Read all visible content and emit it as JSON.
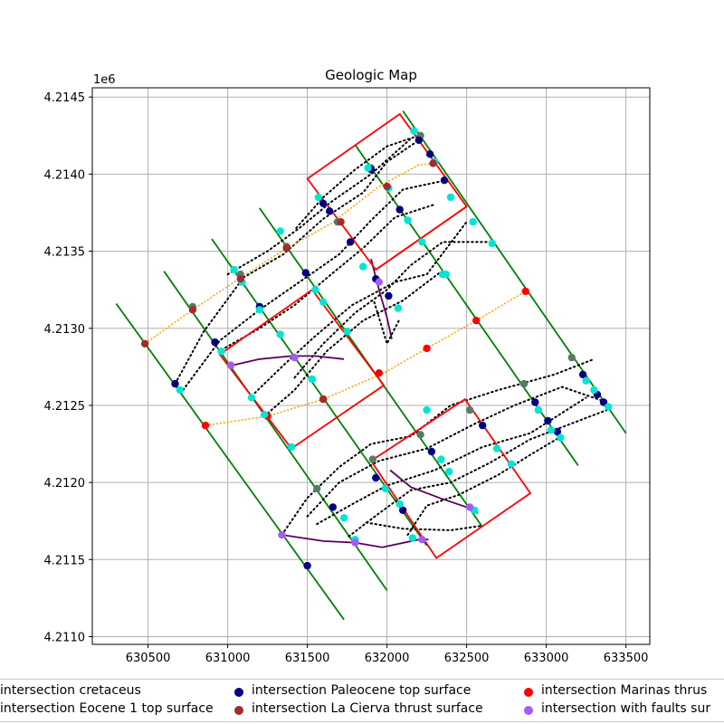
{
  "chart_data": {
    "type": "scatter",
    "title": "Geologic Map",
    "xlabel": "",
    "ylabel": "",
    "y_offset_label": "1e6",
    "xlim": [
      630150,
      633650
    ],
    "ylim": [
      4210950,
      4214560
    ],
    "x_ticks": [
      630500,
      631000,
      631500,
      632000,
      632500,
      633000,
      633500
    ],
    "y_ticks": [
      4211000,
      4211500,
      4212000,
      4212500,
      4213000,
      4213500,
      4214000,
      4214500
    ],
    "y_tick_labels": [
      "4.2110",
      "4.2115",
      "4.2120",
      "4.2125",
      "4.2130",
      "4.2135",
      "4.2140",
      "4.2145"
    ],
    "grid": true,
    "legend_position": "bottom",
    "colors": {
      "profile_lines": "#008000",
      "map_boxes": "#ff0000",
      "contours": "#000000",
      "orange_trace": "#ffa500",
      "faults": "#5b005b",
      "cyan": "#00e5d5",
      "gray": "#5a7a66",
      "navy": "#000080",
      "brown": "#a52a2a",
      "red": "#ff0000",
      "violet": "#a55cf5"
    },
    "legend": [
      {
        "label": "intersection cretaceus",
        "color": "#5a7a66"
      },
      {
        "label": "intersection Paleocene top surface",
        "color": "#000080"
      },
      {
        "label": "intersection Marinas thrus",
        "color": "#ff0000"
      },
      {
        "label": "intersection Eocene 1 top surface",
        "color": "#00e5d5"
      },
      {
        "label": "intersection La Cierva thrust surface",
        "color": "#a52a2a"
      },
      {
        "label": "intersection with faults sur",
        "color": "#a55cf5"
      }
    ],
    "profile_lines": [
      [
        [
          630300,
          4213160
        ],
        [
          631730,
          4211110
        ]
      ],
      [
        [
          630600,
          4213370
        ],
        [
          632000,
          4211300
        ]
      ],
      [
        [
          630900,
          4213580
        ],
        [
          632250,
          4211590
        ]
      ],
      [
        [
          631200,
          4213780
        ],
        [
          632600,
          4211710
        ]
      ],
      [
        [
          631800,
          4214190
        ],
        [
          633200,
          4212110
        ]
      ],
      [
        [
          632100,
          4214410
        ],
        [
          633500,
          4212320
        ]
      ]
    ],
    "map_boxes": [
      [
        [
          631500,
          4213970
        ],
        [
          632080,
          4214390
        ],
        [
          632500,
          4213790
        ],
        [
          631930,
          4213380
        ]
      ],
      [
        [
          631930,
          4213380
        ],
        [
          632500,
          4213790
        ],
        [
          631930,
          4213380
        ]
      ],
      [
        [
          630950,
          4212830
        ],
        [
          631530,
          4213250
        ],
        [
          631980,
          4212630
        ],
        [
          631400,
          4212220
        ]
      ],
      [
        [
          631900,
          4212140
        ],
        [
          632490,
          4212540
        ],
        [
          632900,
          4211930
        ],
        [
          632310,
          4211510
        ]
      ]
    ],
    "orange_traces": [
      [
        [
          630480,
          4212900
        ],
        [
          630780,
          4213120
        ],
        [
          631070,
          4213320
        ],
        [
          631370,
          4213520
        ],
        [
          631650,
          4213680
        ],
        [
          631950,
          4213920
        ],
        [
          632200,
          4214060
        ],
        [
          632300,
          4214070
        ]
      ],
      [
        [
          630860,
          4212370
        ],
        [
          631250,
          4212430
        ],
        [
          631600,
          4212540
        ],
        [
          631980,
          4212710
        ],
        [
          632250,
          4212870
        ],
        [
          632560,
          4213050
        ],
        [
          632870,
          4213240
        ]
      ]
    ],
    "contours": [
      [
        [
          630670,
          4212640
        ],
        [
          630850,
          4212980
        ],
        [
          631100,
          4213330
        ],
        [
          631350,
          4213480
        ],
        [
          631600,
          4213710
        ],
        [
          631850,
          4213880
        ],
        [
          632000,
          4214080
        ],
        [
          632200,
          4214220
        ]
      ],
      [
        [
          630720,
          4212600
        ],
        [
          630950,
          4212920
        ],
        [
          631200,
          4213120
        ],
        [
          631450,
          4213300
        ],
        [
          631700,
          4213480
        ],
        [
          631900,
          4213700
        ],
        [
          632100,
          4213900
        ],
        [
          632370,
          4213960
        ]
      ],
      [
        [
          630960,
          4212860
        ],
        [
          631200,
          4213000
        ],
        [
          631420,
          4213150
        ],
        [
          631650,
          4213350
        ],
        [
          631850,
          4213520
        ],
        [
          632050,
          4213720
        ],
        [
          632290,
          4213800
        ]
      ],
      [
        [
          631000,
          4213350
        ],
        [
          631250,
          4213500
        ],
        [
          631450,
          4213650
        ],
        [
          631650,
          4213820
        ],
        [
          631900,
          4214000
        ],
        [
          632150,
          4214230
        ]
      ],
      [
        [
          631430,
          4213650
        ],
        [
          631600,
          4213850
        ],
        [
          631800,
          4214030
        ],
        [
          632000,
          4214180
        ],
        [
          632200,
          4214250
        ]
      ],
      [
        [
          631420,
          4212680
        ],
        [
          631600,
          4212900
        ],
        [
          631800,
          4213100
        ],
        [
          632000,
          4213250
        ],
        [
          632150,
          4213410
        ],
        [
          632350,
          4213560
        ],
        [
          632650,
          4213560
        ]
      ],
      [
        [
          631150,
          4212560
        ],
        [
          631350,
          4212760
        ],
        [
          631550,
          4212950
        ],
        [
          631780,
          4213150
        ],
        [
          632050,
          4213300
        ],
        [
          632250,
          4213350
        ],
        [
          632500,
          4213690
        ]
      ],
      [
        [
          631230,
          4212430
        ],
        [
          631420,
          4212600
        ],
        [
          631620,
          4212850
        ],
        [
          631850,
          4213050
        ],
        [
          632100,
          4213180
        ],
        [
          632330,
          4213360
        ]
      ],
      [
        [
          631920,
          4213170
        ],
        [
          632000,
          4212900
        ],
        [
          632080,
          4213060
        ]
      ],
      [
        [
          631340,
          4211660
        ],
        [
          631500,
          4211900
        ],
        [
          631700,
          4212100
        ],
        [
          631900,
          4212250
        ],
        [
          632150,
          4212300
        ],
        [
          632400,
          4212500
        ],
        [
          632700,
          4212600
        ],
        [
          633050,
          4212700
        ],
        [
          633300,
          4212800
        ]
      ],
      [
        [
          631500,
          4211780
        ],
        [
          631700,
          4212000
        ],
        [
          631950,
          4212140
        ],
        [
          632250,
          4212220
        ],
        [
          632550,
          4212380
        ],
        [
          632800,
          4212500
        ],
        [
          633100,
          4212620
        ],
        [
          633380,
          4212520
        ]
      ],
      [
        [
          631560,
          4211730
        ],
        [
          631800,
          4211870
        ],
        [
          632000,
          4211980
        ],
        [
          632300,
          4212080
        ],
        [
          632600,
          4212230
        ],
        [
          632900,
          4212320
        ],
        [
          633250,
          4212550
        ]
      ],
      [
        [
          631760,
          4211650
        ],
        [
          631950,
          4211800
        ],
        [
          632150,
          4211950
        ],
        [
          632400,
          4212000
        ],
        [
          632650,
          4212130
        ],
        [
          632900,
          4212280
        ],
        [
          633380,
          4212470
        ]
      ],
      [
        [
          632130,
          4211660
        ],
        [
          632250,
          4211850
        ],
        [
          632450,
          4211920
        ],
        [
          632700,
          4212050
        ],
        [
          632900,
          4212180
        ],
        [
          633080,
          4212290
        ]
      ],
      [
        [
          631870,
          4211740
        ],
        [
          632100,
          4211700
        ],
        [
          632400,
          4211690
        ],
        [
          632600,
          4211720
        ]
      ]
    ],
    "faults": [
      [
        [
          631030,
          4212760
        ],
        [
          631200,
          4212800
        ],
        [
          631400,
          4212820
        ],
        [
          631550,
          4212820
        ],
        [
          631730,
          4212800
        ]
      ],
      [
        [
          631900,
          4213450
        ],
        [
          631950,
          4213250
        ],
        [
          632000,
          4213070
        ],
        [
          632030,
          4212930
        ]
      ],
      [
        [
          631340,
          4211660
        ],
        [
          631600,
          4211620
        ],
        [
          631800,
          4211610
        ],
        [
          631970,
          4211580
        ],
        [
          632200,
          4211630
        ],
        [
          632260,
          4211630
        ]
      ],
      [
        [
          632020,
          4212080
        ],
        [
          632150,
          4211970
        ],
        [
          632330,
          4211900
        ],
        [
          632500,
          4211840
        ],
        [
          632570,
          4211800
        ]
      ]
    ],
    "series": [
      {
        "name": "intersection cretaceus",
        "color": "#5a7a66",
        "points": [
          [
            632210,
            4214250
          ],
          [
            631900,
            4214040
          ],
          [
            631690,
            4213690
          ],
          [
            631370,
            4213530
          ],
          [
            631080,
            4213350
          ],
          [
            630780,
            4213140
          ],
          [
            631910,
            4212150
          ],
          [
            631560,
            4211960
          ],
          [
            632210,
            4212310
          ],
          [
            632520,
            4212470
          ],
          [
            632860,
            4212640
          ],
          [
            633160,
            4212810
          ]
        ]
      },
      {
        "name": "intersection Paleocene top surface",
        "color": "#000080",
        "points": [
          [
            632200,
            4214220
          ],
          [
            632270,
            4214130
          ],
          [
            632360,
            4213960
          ],
          [
            632080,
            4213770
          ],
          [
            631930,
            4213320
          ],
          [
            632010,
            4213210
          ],
          [
            631770,
            4213560
          ],
          [
            631640,
            4213760
          ],
          [
            631600,
            4213810
          ],
          [
            631900,
            4214030
          ],
          [
            631490,
            4213360
          ],
          [
            631200,
            4213140
          ],
          [
            630920,
            4212910
          ],
          [
            630670,
            4212640
          ],
          [
            631930,
            4212030
          ],
          [
            632280,
            4212200
          ],
          [
            632600,
            4212370
          ],
          [
            632930,
            4212520
          ],
          [
            633010,
            4212400
          ],
          [
            633070,
            4212330
          ],
          [
            633230,
            4212700
          ],
          [
            633320,
            4212570
          ],
          [
            633360,
            4212520
          ],
          [
            631660,
            4211840
          ],
          [
            632100,
            4211820
          ],
          [
            631500,
            4211460
          ]
        ]
      },
      {
        "name": "intersection Marinas thrus",
        "color": "#ff0000",
        "points": [
          [
            632870,
            4213240
          ],
          [
            632560,
            4213050
          ],
          [
            632250,
            4212870
          ],
          [
            631950,
            4212710
          ],
          [
            631600,
            4212540
          ],
          [
            631250,
            4212430
          ],
          [
            630860,
            4212370
          ]
        ]
      },
      {
        "name": "intersection Eocene 1 top surface",
        "color": "#00e5d5",
        "points": [
          [
            632170,
            4214280
          ],
          [
            632300,
            4214080
          ],
          [
            632400,
            4213850
          ],
          [
            632540,
            4213690
          ],
          [
            632660,
            4213550
          ],
          [
            631880,
            4214040
          ],
          [
            632010,
            4213910
          ],
          [
            632130,
            4213700
          ],
          [
            632220,
            4213560
          ],
          [
            632350,
            4213350
          ],
          [
            631570,
            4213850
          ],
          [
            631550,
            4213250
          ],
          [
            631600,
            4213170
          ],
          [
            631750,
            4212980
          ],
          [
            631330,
            4213630
          ],
          [
            631200,
            4213120
          ],
          [
            631330,
            4212960
          ],
          [
            631530,
            4212670
          ],
          [
            631150,
            4212550
          ],
          [
            631230,
            4212440
          ],
          [
            631040,
            4213380
          ],
          [
            631090,
            4213300
          ],
          [
            630960,
            4212850
          ],
          [
            630700,
            4212600
          ],
          [
            631850,
            4213400
          ],
          [
            632070,
            4213130
          ],
          [
            632370,
            4213350
          ],
          [
            631400,
            4212230
          ],
          [
            632340,
            4212150
          ],
          [
            632390,
            4212070
          ],
          [
            632550,
            4211820
          ],
          [
            632690,
            4212220
          ],
          [
            632780,
            4212120
          ],
          [
            632950,
            4212470
          ],
          [
            633030,
            4212340
          ],
          [
            633090,
            4212290
          ],
          [
            633250,
            4212660
          ],
          [
            633300,
            4212600
          ],
          [
            633390,
            4212490
          ],
          [
            631990,
            4211960
          ],
          [
            632080,
            4211860
          ],
          [
            631730,
            4211770
          ],
          [
            631800,
            4211630
          ],
          [
            632160,
            4211640
          ],
          [
            632250,
            4212470
          ]
        ]
      },
      {
        "name": "intersection La Cierva thrust surface",
        "color": "#a52a2a",
        "points": [
          [
            632290,
            4214070
          ],
          [
            632000,
            4213920
          ],
          [
            631710,
            4213690
          ],
          [
            631370,
            4213520
          ],
          [
            631080,
            4213320
          ],
          [
            630780,
            4213120
          ],
          [
            630480,
            4212900
          ],
          [
            631600,
            4212540
          ]
        ]
      },
      {
        "name": "intersection with faults sur",
        "color": "#a55cf5",
        "points": [
          [
            631950,
            4213300
          ],
          [
            631020,
            4212760
          ],
          [
            631420,
            4212810
          ],
          [
            631340,
            4211660
          ],
          [
            631800,
            4211610
          ],
          [
            632220,
            4211630
          ],
          [
            632520,
            4211840
          ]
        ]
      }
    ]
  }
}
